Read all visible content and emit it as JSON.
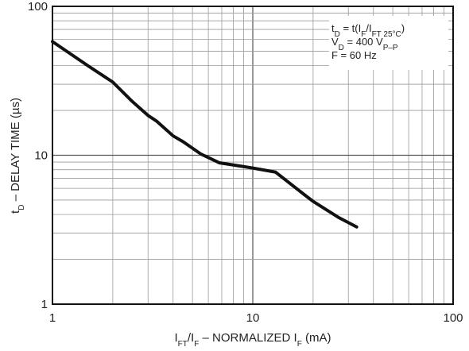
{
  "chart_data": {
    "type": "line",
    "xscale": "log",
    "yscale": "log",
    "xlim": [
      1,
      100
    ],
    "ylim": [
      1,
      100
    ],
    "grid": true,
    "legend_placement": "top-right",
    "x_ticks": [
      "1",
      "10",
      "100"
    ],
    "y_ticks": [
      "1",
      "10",
      "100"
    ],
    "xlabel": {
      "parts": [
        {
          "t": "I"
        },
        {
          "t": "FT",
          "sub": true
        },
        {
          "t": "/I"
        },
        {
          "t": "F",
          "sub": true
        },
        {
          "t": " – NORMALIZED I"
        },
        {
          "t": "F",
          "sub": true
        },
        {
          "t": " (mA)"
        }
      ]
    },
    "ylabel": {
      "parts": [
        {
          "t": "t"
        },
        {
          "t": "D",
          "sub": true
        },
        {
          "t": " – DELAY TIME (µs)"
        }
      ]
    },
    "annotation_lines": [
      {
        "parts": [
          {
            "t": "t"
          },
          {
            "t": "D",
            "sub": true
          },
          {
            "t": " = t(I"
          },
          {
            "t": "F",
            "sub": true
          },
          {
            "t": "/I"
          },
          {
            "t": "FT 25°C",
            "sub": true
          },
          {
            "t": ")"
          }
        ]
      },
      {
        "parts": [
          {
            "t": "V"
          },
          {
            "t": "D",
            "sub": true
          },
          {
            "t": " = 400 V"
          },
          {
            "t": "P–P",
            "sub": true
          }
        ]
      },
      {
        "parts": [
          {
            "t": "F = 60 Hz"
          }
        ]
      }
    ],
    "series": [
      {
        "x": [
          1,
          1.5,
          2,
          2.5,
          3,
          3.3,
          4,
          4.5,
          5.5,
          6.8,
          8,
          10,
          13,
          17,
          20,
          27,
          33
        ],
        "y": [
          58,
          40,
          31,
          23,
          18.5,
          17,
          13.5,
          12.3,
          10.2,
          8.9,
          8.6,
          8.2,
          7.7,
          5.8,
          4.9,
          3.8,
          3.3
        ]
      }
    ]
  }
}
